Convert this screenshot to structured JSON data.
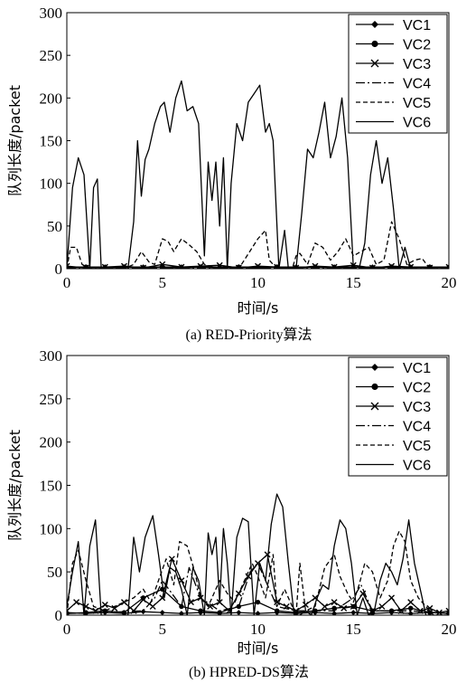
{
  "chart_data": [
    {
      "type": "line",
      "caption": "(a) RED-Priority算法",
      "xlabel": "时间/s",
      "ylabel": "队列长度/packet",
      "xlim": [
        0,
        20
      ],
      "ylim": [
        0,
        300
      ],
      "xticks": [
        "0",
        "5",
        "10",
        "15",
        "20"
      ],
      "yticks": [
        "0",
        "50",
        "100",
        "150",
        "200",
        "250",
        "300"
      ],
      "legend_position": "top-right",
      "series": [
        {
          "name": "VC1",
          "style": "diamond-marker",
          "x": [
            0,
            1,
            2,
            3,
            4,
            5,
            6,
            7,
            8,
            9,
            10,
            11,
            12,
            13,
            14,
            15,
            16,
            17,
            18,
            19,
            20
          ],
          "y": [
            2,
            2,
            2,
            2,
            2,
            2,
            2,
            2,
            2,
            2,
            2,
            2,
            2,
            2,
            2,
            2,
            2,
            2,
            2,
            2,
            2
          ]
        },
        {
          "name": "VC2",
          "style": "circle-marker",
          "x": [
            0,
            1,
            2,
            3,
            4,
            5,
            6,
            7,
            8,
            9,
            10,
            11,
            12,
            13,
            14,
            15,
            16,
            17,
            18,
            19,
            20
          ],
          "y": [
            1,
            2,
            1,
            2,
            1,
            2,
            1,
            2,
            1,
            2,
            1,
            2,
            1,
            2,
            1,
            2,
            1,
            2,
            1,
            2,
            1
          ]
        },
        {
          "name": "VC3",
          "style": "x-marker",
          "x": [
            0,
            1,
            2,
            3,
            4,
            5,
            6,
            7,
            8,
            9,
            10,
            11,
            12,
            13,
            14,
            15,
            16,
            17,
            18,
            19,
            20
          ],
          "y": [
            3,
            1,
            2,
            3,
            1,
            5,
            2,
            3,
            4,
            1,
            3,
            2,
            1,
            3,
            2,
            4,
            1,
            3,
            2,
            1,
            2
          ]
        },
        {
          "name": "VC4",
          "style": "dash-dot",
          "x": [
            0,
            2,
            4,
            6,
            8,
            10,
            12,
            14,
            16,
            18,
            20
          ],
          "y": [
            1,
            1,
            1,
            1,
            1,
            1,
            1,
            1,
            1,
            1,
            1
          ]
        },
        {
          "name": "VC5",
          "style": "dashed",
          "x": [
            0,
            0.2,
            0.5,
            0.8,
            1.2,
            2,
            3,
            3.5,
            3.9,
            4.3,
            4.6,
            5,
            5.3,
            5.6,
            6,
            6.4,
            6.8,
            7.2,
            8,
            9,
            10,
            10.4,
            10.6,
            11,
            11.8,
            12,
            12.2,
            12.6,
            13,
            13.4,
            13.8,
            14.2,
            14.6,
            15,
            15.4,
            15.8,
            16.2,
            16.6,
            17,
            17.4,
            17.8,
            18.2,
            18.6,
            19,
            20
          ],
          "y": [
            0,
            25,
            25,
            5,
            0,
            0,
            0,
            5,
            20,
            8,
            5,
            35,
            32,
            20,
            35,
            28,
            20,
            5,
            0,
            0,
            35,
            45,
            10,
            0,
            0,
            15,
            18,
            5,
            30,
            25,
            10,
            20,
            35,
            15,
            20,
            25,
            5,
            10,
            55,
            35,
            5,
            10,
            12,
            0,
            0
          ]
        },
        {
          "name": "VC6",
          "style": "solid",
          "x": [
            0,
            0.3,
            0.6,
            0.9,
            1.2,
            1.4,
            1.6,
            1.8,
            2.0,
            3.2,
            3.5,
            3.7,
            3.9,
            4.1,
            4.3,
            4.6,
            4.9,
            5.1,
            5.4,
            5.7,
            6.0,
            6.3,
            6.6,
            6.9,
            7.2,
            7.4,
            7.6,
            7.8,
            8.0,
            8.2,
            8.4,
            8.6,
            8.9,
            9.2,
            9.5,
            9.8,
            10.1,
            10.4,
            10.6,
            10.8,
            11.1,
            11.4,
            11.6,
            11.8,
            12.0,
            12.3,
            12.6,
            12.9,
            13.2,
            13.5,
            13.8,
            14.1,
            14.4,
            14.7,
            15.0,
            15.3,
            15.6,
            15.9,
            16.2,
            16.5,
            16.8,
            17.1,
            17.4,
            17.7,
            18.0,
            18.3,
            18.6,
            18.9,
            19.2,
            19.5,
            20
          ],
          "y": [
            0,
            95,
            130,
            110,
            0,
            95,
            105,
            0,
            0,
            0,
            55,
            150,
            85,
            128,
            140,
            170,
            190,
            195,
            160,
            200,
            220,
            185,
            190,
            170,
            15,
            125,
            80,
            125,
            50,
            130,
            0,
            100,
            170,
            150,
            195,
            205,
            215,
            160,
            170,
            150,
            0,
            45,
            0,
            0,
            0,
            65,
            140,
            130,
            160,
            195,
            130,
            155,
            200,
            130,
            0,
            0,
            30,
            110,
            150,
            100,
            130,
            70,
            0,
            25,
            0,
            0,
            0,
            0,
            0,
            0,
            0
          ]
        }
      ]
    },
    {
      "type": "line",
      "caption": "(b) HPRED-DS算法",
      "xlabel": "时间/s",
      "ylabel": "队列长度/packet",
      "xlim": [
        0,
        20
      ],
      "ylim": [
        0,
        300
      ],
      "xticks": [
        "0",
        "5",
        "10",
        "15",
        "20"
      ],
      "yticks": [
        "0",
        "50",
        "100",
        "150",
        "200",
        "250",
        "300"
      ],
      "legend_position": "top-right",
      "series": [
        {
          "name": "VC1",
          "style": "diamond-marker",
          "x": [
            0,
            1,
            2,
            3,
            4,
            5,
            6,
            7,
            8,
            9,
            10,
            11,
            12,
            13,
            14,
            15,
            16,
            17,
            18,
            19,
            20
          ],
          "y": [
            3,
            2,
            3,
            2,
            4,
            3,
            2,
            3,
            2,
            3,
            2,
            3,
            2,
            3,
            2,
            3,
            2,
            3,
            2,
            3,
            2
          ]
        },
        {
          "name": "VC2",
          "style": "circle-marker",
          "x": [
            0,
            1,
            2,
            3,
            4,
            5,
            6,
            7,
            8,
            9,
            10,
            11,
            12,
            13,
            14,
            15,
            16,
            17,
            18,
            19,
            20
          ],
          "y": [
            2,
            3,
            5,
            3,
            20,
            30,
            10,
            5,
            3,
            10,
            15,
            5,
            3,
            5,
            8,
            10,
            5,
            5,
            8,
            3,
            2
          ]
        },
        {
          "name": "VC3",
          "style": "x-marker",
          "x": [
            0,
            0.5,
            1,
            1.5,
            2,
            2.5,
            3,
            3.5,
            4,
            4.5,
            5,
            5.5,
            6,
            6.5,
            7,
            7.5,
            8,
            8.5,
            9,
            9.5,
            10,
            10.5,
            11,
            11.5,
            12,
            12.5,
            13,
            13.5,
            14,
            14.5,
            15,
            15.5,
            16,
            16.5,
            17,
            17.5,
            18,
            18.5,
            19,
            19.5,
            20
          ],
          "y": [
            5,
            15,
            10,
            5,
            12,
            8,
            15,
            5,
            18,
            10,
            20,
            65,
            40,
            15,
            20,
            10,
            15,
            5,
            25,
            45,
            60,
            70,
            15,
            10,
            5,
            12,
            20,
            10,
            15,
            8,
            10,
            25,
            5,
            10,
            20,
            5,
            15,
            5,
            8,
            3,
            5
          ]
        },
        {
          "name": "VC4",
          "style": "dash-dot",
          "x": [
            0,
            2,
            4,
            4.6,
            5,
            6,
            6.4,
            7,
            8,
            9,
            9.6,
            10,
            10.4,
            11,
            12,
            14,
            15,
            15.4,
            16,
            18,
            20
          ],
          "y": [
            2,
            3,
            5,
            20,
            40,
            10,
            55,
            20,
            5,
            10,
            50,
            60,
            40,
            10,
            5,
            5,
            20,
            35,
            5,
            5,
            2
          ]
        },
        {
          "name": "VC5",
          "style": "dashed",
          "x": [
            0,
            0.3,
            0.6,
            1,
            1.4,
            2,
            3,
            3.5,
            4,
            4.4,
            4.8,
            5.2,
            5.6,
            5.9,
            6.3,
            6.7,
            7,
            7.4,
            8,
            8.4,
            8.8,
            9.3,
            9.7,
            10,
            10.4,
            10.8,
            11,
            11.4,
            12,
            12.2,
            12.5,
            13,
            13.5,
            14,
            14.3,
            14.7,
            15,
            15.3,
            15.6,
            16,
            16.4,
            16.8,
            17.1,
            17.4,
            17.7,
            18,
            18.4,
            18.8,
            19.2,
            20
          ],
          "y": [
            0,
            60,
            75,
            40,
            10,
            5,
            15,
            20,
            30,
            15,
            40,
            65,
            35,
            85,
            80,
            50,
            20,
            10,
            40,
            25,
            15,
            40,
            60,
            45,
            20,
            70,
            10,
            30,
            0,
            60,
            5,
            10,
            55,
            70,
            45,
            25,
            15,
            35,
            60,
            50,
            20,
            40,
            80,
            97,
            85,
            40,
            20,
            10,
            0,
            0
          ]
        },
        {
          "name": "VC6",
          "style": "solid",
          "x": [
            0,
            0.3,
            0.6,
            0.9,
            1.2,
            1.5,
            1.8,
            2.0,
            3.2,
            3.5,
            3.8,
            4.1,
            4.5,
            4.8,
            5.1,
            5.4,
            5.7,
            6.0,
            6.3,
            6.6,
            6.9,
            7.2,
            7.4,
            7.6,
            7.8,
            8.0,
            8.2,
            8.4,
            8.6,
            8.9,
            9.2,
            9.5,
            9.8,
            10.1,
            10.4,
            10.7,
            11.0,
            11.3,
            11.6,
            11.9,
            12.2,
            12.5,
            12.8,
            13.1,
            13.4,
            13.7,
            14.0,
            14.3,
            14.6,
            14.9,
            15.2,
            15.5,
            15.8,
            16.1,
            16.4,
            16.7,
            17.0,
            17.3,
            17.6,
            17.9,
            18.2,
            18.5,
            18.8,
            19.1,
            19.4,
            20
          ],
          "y": [
            10,
            50,
            85,
            0,
            80,
            110,
            0,
            0,
            0,
            90,
            50,
            90,
            115,
            70,
            20,
            55,
            50,
            30,
            0,
            55,
            40,
            0,
            95,
            70,
            90,
            15,
            100,
            60,
            0,
            90,
            112,
            108,
            0,
            60,
            40,
            105,
            140,
            125,
            60,
            0,
            0,
            5,
            0,
            20,
            35,
            30,
            80,
            110,
            100,
            60,
            0,
            20,
            0,
            5,
            40,
            60,
            50,
            35,
            65,
            110,
            60,
            30,
            0,
            0,
            0,
            0
          ]
        }
      ]
    }
  ]
}
